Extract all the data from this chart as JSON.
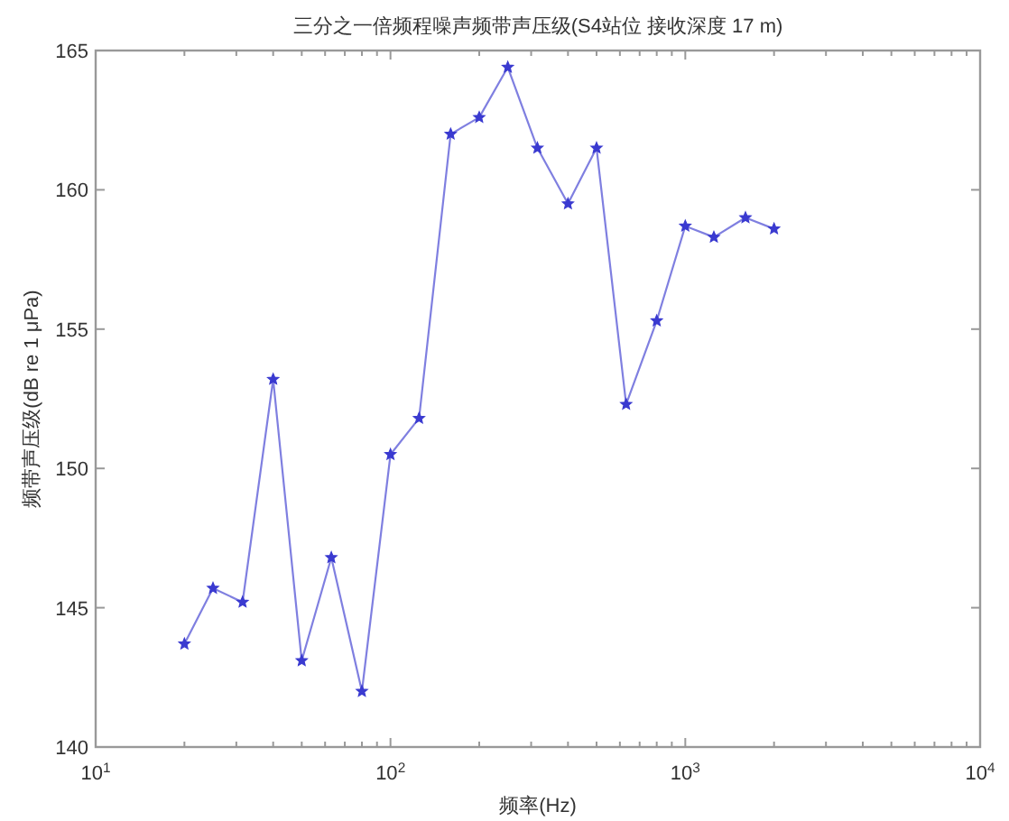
{
  "chart_data": {
    "type": "line",
    "title": "三分之一倍频程噪声频带声压级(S4站位 接收深度 17 m)",
    "xlabel": "频率(Hz)",
    "ylabel": "频带声压级(dB re 1 μPa)",
    "log": "x",
    "x": [
      20,
      25,
      31.5,
      40,
      50,
      63,
      80,
      100,
      125,
      160,
      200,
      250,
      315,
      400,
      500,
      630,
      800,
      1000,
      1250,
      1600,
      2000
    ],
    "series": [
      {
        "color": "#3a3ad0",
        "values": [
          143.7,
          145.7,
          145.2,
          153.2,
          143.1,
          146.8,
          142.0,
          150.5,
          151.8,
          162.0,
          162.6,
          164.4,
          161.5,
          159.5,
          161.5,
          152.3,
          155.3,
          158.7,
          158.3,
          159.0,
          158.6
        ]
      }
    ],
    "marker": "star",
    "line_style": "solid",
    "xlim": [
      10,
      10000
    ],
    "xticks": [
      {
        "value": 10,
        "label": "10$^{1}$"
      },
      {
        "value": 100,
        "label": "10$^{2}$"
      },
      {
        "value": 1000,
        "label": "10$^{3}$"
      },
      {
        "value": 10000,
        "label": "10$^{4}$"
      }
    ],
    "ylim": [
      140,
      165
    ],
    "yticks": [
      140,
      145,
      150,
      155,
      160,
      165
    ]
  }
}
